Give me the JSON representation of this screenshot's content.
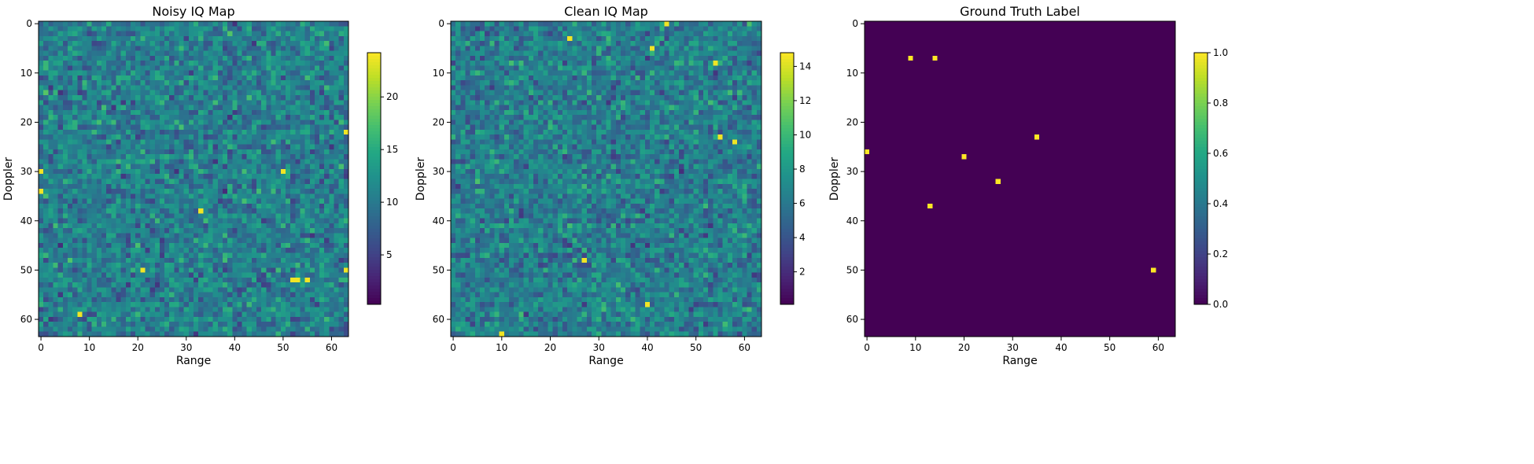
{
  "chart_data": [
    {
      "type": "heatmap",
      "title": "Noisy IQ Map",
      "xlabel": "Range",
      "ylabel": "Doppler",
      "grid": false,
      "colormap": "viridis",
      "shape": [
        64,
        64
      ],
      "x_ticks": [
        0,
        10,
        20,
        30,
        40,
        50,
        60
      ],
      "y_ticks": [
        0,
        10,
        20,
        30,
        40,
        50,
        60
      ],
      "colorbar_range": [
        0.3,
        24.2
      ],
      "colorbar_ticks": [
        5,
        10,
        15,
        20
      ],
      "pattern": "noise",
      "bright_cells": [
        [
          21,
          50
        ],
        [
          52,
          52
        ],
        [
          53,
          52
        ],
        [
          55,
          52
        ],
        [
          63,
          50
        ],
        [
          50,
          30
        ],
        [
          63,
          22
        ],
        [
          33,
          38
        ],
        [
          8,
          59
        ],
        [
          0,
          30
        ],
        [
          0,
          34
        ]
      ],
      "seed": 11
    },
    {
      "type": "heatmap",
      "title": "Clean IQ Map",
      "xlabel": "Range",
      "ylabel": "Doppler",
      "grid": false,
      "colormap": "viridis",
      "shape": [
        64,
        64
      ],
      "x_ticks": [
        0,
        10,
        20,
        30,
        40,
        50,
        60
      ],
      "y_ticks": [
        0,
        10,
        20,
        30,
        40,
        50,
        60
      ],
      "colorbar_range": [
        0.1,
        14.8
      ],
      "colorbar_ticks": [
        2,
        4,
        6,
        8,
        10,
        12,
        14
      ],
      "pattern": "noise",
      "bright_cells": [
        [
          41,
          5
        ],
        [
          44,
          0
        ],
        [
          10,
          63
        ],
        [
          55,
          23
        ],
        [
          54,
          8
        ],
        [
          40,
          57
        ],
        [
          27,
          48
        ],
        [
          24,
          3
        ],
        [
          58,
          24
        ]
      ],
      "seed": 23
    },
    {
      "type": "heatmap",
      "title": "Ground Truth Label",
      "xlabel": "Range",
      "ylabel": "Doppler",
      "grid": false,
      "colormap": "viridis",
      "shape": [
        64,
        64
      ],
      "x_ticks": [
        0,
        10,
        20,
        30,
        40,
        50,
        60
      ],
      "y_ticks": [
        0,
        10,
        20,
        30,
        40,
        50,
        60
      ],
      "colorbar_range": [
        0.0,
        1.0
      ],
      "colorbar_ticks": [
        0.0,
        0.2,
        0.4,
        0.6,
        0.8,
        1.0
      ],
      "pattern": "binary",
      "background_value": 0,
      "targets": [
        [
          9,
          7
        ],
        [
          14,
          7
        ],
        [
          0,
          26
        ],
        [
          20,
          27
        ],
        [
          35,
          23
        ],
        [
          27,
          32
        ],
        [
          13,
          37
        ],
        [
          59,
          50
        ]
      ]
    }
  ]
}
